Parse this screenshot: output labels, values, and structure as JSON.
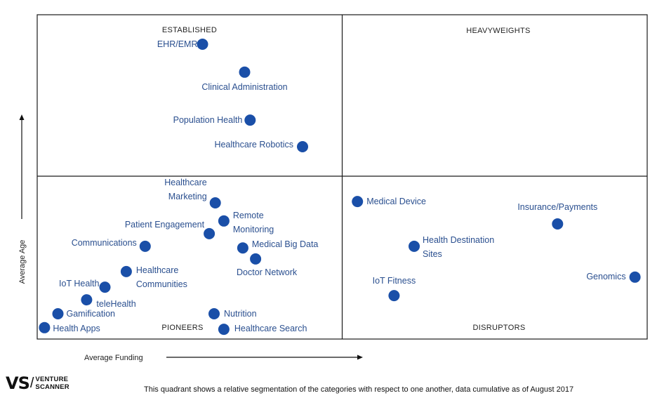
{
  "chart_data": {
    "type": "scatter",
    "title": "",
    "xlabel": "Average Funding",
    "ylabel": "Average Age",
    "xlim": [
      0,
      100
    ],
    "ylim": [
      0,
      100
    ],
    "grid": false,
    "quadrants": [
      {
        "key": "top-left",
        "label": "ESTABLISHED"
      },
      {
        "key": "top-right",
        "label": "HEAVYWEIGHTS"
      },
      {
        "key": "bottom-left",
        "label": "PIONEERS"
      },
      {
        "key": "bottom-right",
        "label": "DISRUPTORS"
      }
    ],
    "color": "#1a4fa8",
    "points": [
      {
        "label": "EHR/EMR",
        "x": 27.1,
        "y": 90.9
      },
      {
        "label": "Clinical Administration",
        "x": 34.0,
        "y": 82.3
      },
      {
        "label": "Population Health",
        "x": 34.9,
        "y": 67.5
      },
      {
        "label": "Healthcare Robotics",
        "x": 43.5,
        "y": 59.3
      },
      {
        "label": "Healthcare Marketing",
        "x": 29.2,
        "y": 42.0
      },
      {
        "label": "Patient Engagement",
        "x": 28.2,
        "y": 32.5
      },
      {
        "label": "Remote Monitoring",
        "x": 30.6,
        "y": 36.4
      },
      {
        "label": "Communications",
        "x": 17.7,
        "y": 28.6
      },
      {
        "label": "Medical Big Data",
        "x": 33.7,
        "y": 28.1
      },
      {
        "label": "Doctor Network",
        "x": 35.8,
        "y": 24.7
      },
      {
        "label": "Healthcare Communities",
        "x": 14.6,
        "y": 20.8
      },
      {
        "label": "IoT Health",
        "x": 11.1,
        "y": 16.0
      },
      {
        "label": "teleHealth",
        "x": 8.1,
        "y": 12.1
      },
      {
        "label": "Gamification",
        "x": 3.4,
        "y": 7.8
      },
      {
        "label": "Health Apps",
        "x": 1.2,
        "y": 3.5
      },
      {
        "label": "Nutrition",
        "x": 29.0,
        "y": 7.8
      },
      {
        "label": "Healthcare Search",
        "x": 30.6,
        "y": 3.0
      },
      {
        "label": "Medical Device",
        "x": 52.5,
        "y": 42.4
      },
      {
        "label": "Insurance/Payments",
        "x": 85.3,
        "y": 35.5
      },
      {
        "label": "Health Destination Sites",
        "x": 61.8,
        "y": 28.6
      },
      {
        "label": "IoT Fitness",
        "x": 58.5,
        "y": 13.4
      },
      {
        "label": "Genomics",
        "x": 98.0,
        "y": 19.1
      }
    ]
  },
  "branding": {
    "logo_mark": "VS",
    "logo_line1": "VENTURE",
    "logo_line2": "SCANNER"
  },
  "footnote": "This quadrant shows a relative segmentation of the categories with respect to one another, data cumulative as of August 2017"
}
